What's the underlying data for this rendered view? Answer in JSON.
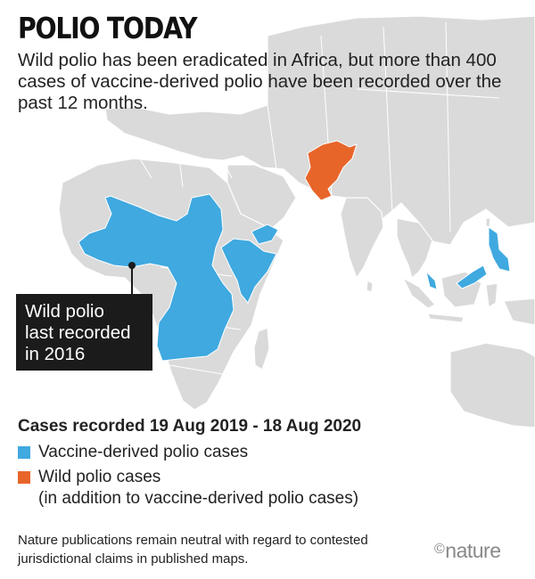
{
  "title": "POLIO TODAY",
  "subtitle": "Wild polio has been eradicated in Africa, but more than 400 cases of vaccine-derived polio have been recorded over the past 12 months.",
  "callout": {
    "lines": [
      "Wild polio",
      "last recorded",
      "in 2016"
    ]
  },
  "legend": {
    "title": "Cases recorded 19 Aug 2019 - 18 Aug 2020",
    "items": [
      {
        "label": "Vaccine-derived polio cases",
        "note": "",
        "color": "#3fa9e0"
      },
      {
        "label": "Wild polio cases",
        "note": "(in addition to vaccine-derived polio cases)",
        "color": "#e8652a"
      }
    ]
  },
  "footnote": "Nature publications remain neutral with regard to contested jurisdictional claims in published maps.",
  "logo": {
    "symbol": "©",
    "text": "nature"
  },
  "colors": {
    "land": "#dadada",
    "border": "#ffffff",
    "water": "#ffffff",
    "vaccine_derived": "#3fa9e0",
    "wild": "#e8652a",
    "callout_bg": "#1b1b1b"
  },
  "map": {
    "vaccine_derived_regions": [
      "West & Central Africa",
      "Horn of Africa",
      "Yemen",
      "Philippines",
      "Malaysia"
    ],
    "wild_regions": [
      "Afghanistan & Pakistan"
    ]
  }
}
